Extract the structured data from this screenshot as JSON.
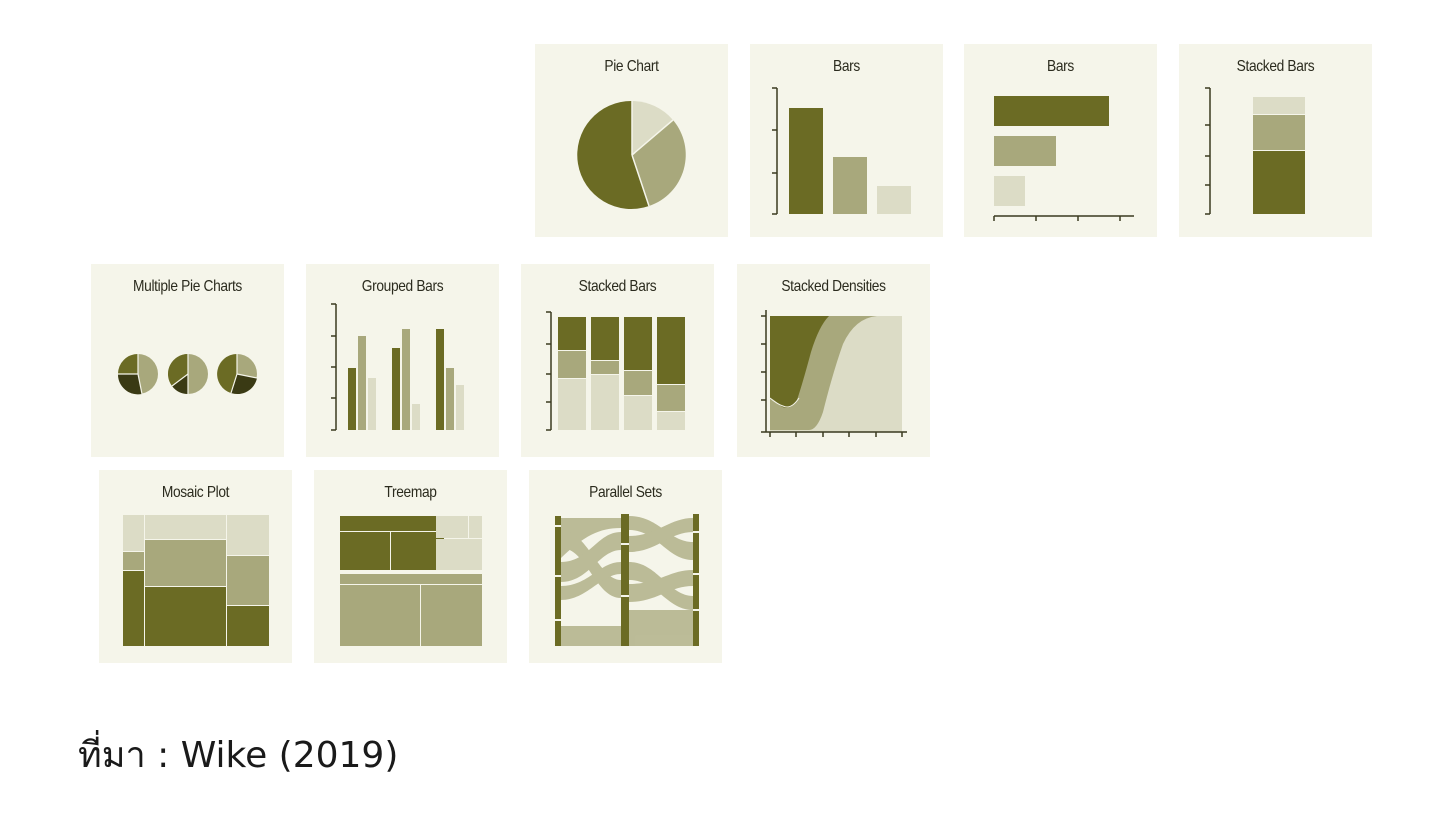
{
  "tiles": {
    "pie_chart": "Pie Chart",
    "bars_vertical": "Bars",
    "bars_horizontal": "Bars",
    "stacked_bars_single": "Stacked Bars",
    "multiple_pie_charts": "Multiple Pie Charts",
    "grouped_bars": "Grouped Bars",
    "stacked_bars_multi": "Stacked Bars",
    "stacked_densities": "Stacked Densities",
    "mosaic_plot": "Mosaic Plot",
    "treemap": "Treemap",
    "parallel_sets": "Parallel Sets"
  },
  "caption": "ที่มา : Wike (2019)",
  "colors": {
    "dark": "#6b6b24",
    "mid": "#a8a87c",
    "light": "#dcdcc6",
    "darkest": "#3a3a14",
    "tile_bg": "#f5f5ea",
    "axis": "#3a3a20"
  }
}
